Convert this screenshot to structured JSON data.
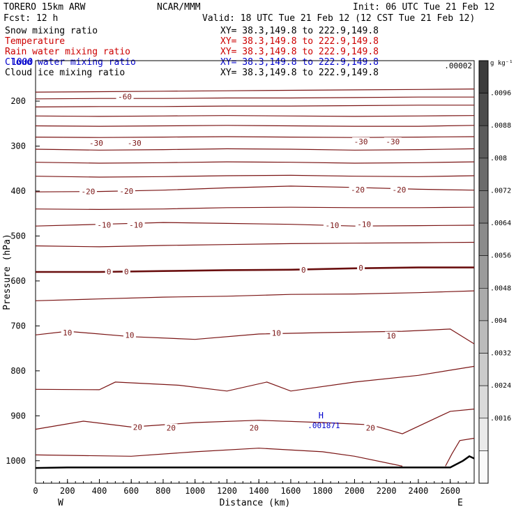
{
  "header": {
    "model": "TORERO  15km ARW",
    "center": "NCAR/MMM",
    "init": "Init: 06 UTC Tue 21 Feb 12",
    "fcst": "Fcst:   12 h",
    "valid": "Valid: 18 UTC Tue 21 Feb 12 (12 CST Tue 21 Feb 12)"
  },
  "fields": [
    {
      "name": "Snow mixing ratio",
      "xy": "XY=  38.3,149.8 to 222.9,149.8",
      "color": "#000000"
    },
    {
      "name": "Temperature",
      "xy": "XY=  38.3,149.8 to 222.9,149.8",
      "color": "#cc0000"
    },
    {
      "name": "Rain water mixing ratio",
      "xy": "XY=  38.3,149.8 to 222.9,149.8",
      "color": "#cc0000"
    },
    {
      "name": "Cloud water mixing ratio",
      "xy": "XY=  38.3,149.8 to 222.9,149.8",
      "color": "#0000cc"
    },
    {
      "name": "Cloud ice mixing ratio",
      "xy": "XY=  38.3,149.8 to 222.9,149.8",
      "color": "#000000"
    }
  ],
  "overlap_text": "1000",
  "chart_data": {
    "type": "contour",
    "xlabel": "Distance (km)",
    "ylabel": "Pressure (hPa)",
    "xlim": [
      0,
      2750
    ],
    "ylim": [
      1050,
      110
    ],
    "x_ticks": [
      0,
      200,
      400,
      600,
      800,
      1000,
      1200,
      1400,
      1600,
      1800,
      2000,
      2200,
      2400,
      2600
    ],
    "y_ticks": [
      200,
      300,
      400,
      500,
      600,
      700,
      800,
      900,
      1000
    ],
    "left_label": "W",
    "right_label": "E",
    "temperature_contours": [
      {
        "points": [
          [
            0,
            180
          ],
          [
            400,
            179
          ],
          [
            800,
            178
          ],
          [
            1200,
            177
          ],
          [
            1600,
            176
          ],
          [
            2000,
            175
          ],
          [
            2400,
            174
          ],
          [
            2750,
            173
          ]
        ]
      },
      {
        "points": [
          [
            0,
            195
          ],
          [
            400,
            194
          ],
          [
            800,
            194
          ],
          [
            1200,
            193
          ],
          [
            1600,
            193
          ],
          [
            2000,
            192
          ],
          [
            2400,
            191
          ],
          [
            2750,
            191
          ]
        ]
      },
      {
        "points": [
          [
            0,
            213
          ],
          [
            400,
            212
          ],
          [
            800,
            212
          ],
          [
            1200,
            211
          ],
          [
            1600,
            211
          ],
          [
            2000,
            210
          ],
          [
            2400,
            209
          ],
          [
            2750,
            209
          ]
        ]
      },
      {
        "points": [
          [
            0,
            233
          ],
          [
            400,
            234
          ],
          [
            800,
            233
          ],
          [
            1200,
            232
          ],
          [
            1600,
            233
          ],
          [
            2000,
            234
          ],
          [
            2400,
            233
          ],
          [
            2750,
            232
          ]
        ]
      },
      {
        "points": [
          [
            0,
            255
          ],
          [
            400,
            256
          ],
          [
            800,
            255
          ],
          [
            1200,
            254
          ],
          [
            1600,
            255
          ],
          [
            2000,
            256
          ],
          [
            2400,
            256
          ],
          [
            2750,
            254
          ]
        ]
      },
      {
        "points": [
          [
            0,
            280
          ],
          [
            400,
            281
          ],
          [
            800,
            280
          ],
          [
            1200,
            279
          ],
          [
            1600,
            280
          ],
          [
            2000,
            281
          ],
          [
            2400,
            280
          ],
          [
            2750,
            279
          ]
        ]
      },
      {
        "points": [
          [
            0,
            307
          ],
          [
            400,
            309
          ],
          [
            800,
            308
          ],
          [
            1200,
            306
          ],
          [
            1600,
            307
          ],
          [
            2000,
            309
          ],
          [
            2400,
            308
          ],
          [
            2750,
            306
          ]
        ]
      },
      {
        "points": [
          [
            0,
            336
          ],
          [
            400,
            338
          ],
          [
            800,
            337
          ],
          [
            1200,
            335
          ],
          [
            1600,
            336
          ],
          [
            2000,
            338
          ],
          [
            2400,
            337
          ],
          [
            2750,
            335
          ]
        ]
      },
      {
        "points": [
          [
            0,
            367
          ],
          [
            400,
            369
          ],
          [
            800,
            368
          ],
          [
            1200,
            366
          ],
          [
            1600,
            365
          ],
          [
            2000,
            367
          ],
          [
            2400,
            368
          ],
          [
            2750,
            366
          ]
        ]
      },
      {
        "points": [
          [
            0,
            402
          ],
          [
            400,
            401
          ],
          [
            800,
            398
          ],
          [
            1200,
            393
          ],
          [
            1600,
            389
          ],
          [
            2000,
            392
          ],
          [
            2400,
            396
          ],
          [
            2750,
            398
          ]
        ]
      },
      {
        "points": [
          [
            0,
            440
          ],
          [
            400,
            441
          ],
          [
            800,
            440
          ],
          [
            1200,
            437
          ],
          [
            1600,
            436
          ],
          [
            2000,
            437
          ],
          [
            2400,
            437
          ],
          [
            2750,
            436
          ]
        ]
      },
      {
        "points": [
          [
            0,
            478
          ],
          [
            400,
            474
          ],
          [
            800,
            470
          ],
          [
            1200,
            472
          ],
          [
            1600,
            474
          ],
          [
            2000,
            478
          ],
          [
            2400,
            477
          ],
          [
            2750,
            476
          ]
        ]
      },
      {
        "points": [
          [
            0,
            522
          ],
          [
            400,
            524
          ],
          [
            800,
            521
          ],
          [
            1200,
            519
          ],
          [
            1600,
            517
          ],
          [
            2000,
            516
          ],
          [
            2400,
            515
          ],
          [
            2750,
            514
          ]
        ]
      },
      {
        "points": [
          [
            0,
            580
          ],
          [
            400,
            580
          ],
          [
            800,
            578
          ],
          [
            1200,
            576
          ],
          [
            1600,
            575
          ],
          [
            2000,
            572
          ],
          [
            2400,
            570
          ],
          [
            2750,
            570
          ]
        ]
      },
      {
        "points": [
          [
            0,
            644
          ],
          [
            400,
            640
          ],
          [
            800,
            636
          ],
          [
            1200,
            634
          ],
          [
            1600,
            630
          ],
          [
            2000,
            629
          ],
          [
            2400,
            626
          ],
          [
            2750,
            622
          ]
        ]
      },
      {
        "points": [
          [
            0,
            720
          ],
          [
            200,
            712
          ],
          [
            600,
            724
          ],
          [
            1000,
            730
          ],
          [
            1400,
            718
          ],
          [
            1800,
            715
          ],
          [
            2300,
            712
          ],
          [
            2600,
            707
          ],
          [
            2750,
            740
          ]
        ]
      },
      {
        "points": [
          [
            0,
            841
          ],
          [
            400,
            842
          ],
          [
            500,
            825
          ],
          [
            900,
            832
          ],
          [
            1200,
            845
          ],
          [
            1450,
            825
          ],
          [
            1600,
            845
          ],
          [
            2000,
            825
          ],
          [
            2400,
            810
          ],
          [
            2750,
            790
          ]
        ]
      },
      {
        "points": [
          [
            0,
            930
          ],
          [
            300,
            912
          ],
          [
            600,
            925
          ],
          [
            1000,
            915
          ],
          [
            1400,
            910
          ],
          [
            1800,
            915
          ],
          [
            2100,
            920
          ],
          [
            2300,
            940
          ],
          [
            2600,
            890
          ],
          [
            2750,
            885
          ]
        ]
      },
      {
        "points": [
          [
            0,
            987
          ],
          [
            600,
            990
          ],
          [
            1000,
            980
          ],
          [
            1400,
            972
          ],
          [
            1800,
            980
          ],
          [
            2000,
            990
          ],
          [
            2300,
            1012
          ]
        ]
      },
      {
        "points": [
          [
            2570,
            1012
          ],
          [
            2610,
            985
          ],
          [
            2660,
            955
          ],
          [
            2750,
            950
          ]
        ]
      }
    ],
    "temperature_labels": [
      {
        "x": 560,
        "p": 190,
        "text": "-60"
      },
      {
        "x": 380,
        "p": 293,
        "text": "-30"
      },
      {
        "x": 620,
        "p": 293,
        "text": "-30"
      },
      {
        "x": 2040,
        "p": 290,
        "text": "-30"
      },
      {
        "x": 2240,
        "p": 290,
        "text": "-30"
      },
      {
        "x": 330,
        "p": 401,
        "text": "-20"
      },
      {
        "x": 570,
        "p": 400,
        "text": "-20"
      },
      {
        "x": 2020,
        "p": 397,
        "text": "-20"
      },
      {
        "x": 2280,
        "p": 397,
        "text": "-20"
      },
      {
        "x": 430,
        "p": 475,
        "text": "-10"
      },
      {
        "x": 630,
        "p": 475,
        "text": "-10"
      },
      {
        "x": 1860,
        "p": 476,
        "text": "-10"
      },
      {
        "x": 2060,
        "p": 474,
        "text": "-10"
      },
      {
        "x": 460,
        "p": 579,
        "text": "0"
      },
      {
        "x": 570,
        "p": 579,
        "text": "0"
      },
      {
        "x": 1680,
        "p": 575,
        "text": "0"
      },
      {
        "x": 2040,
        "p": 571,
        "text": "0"
      },
      {
        "x": 200,
        "p": 715,
        "text": "10"
      },
      {
        "x": 590,
        "p": 720,
        "text": "10"
      },
      {
        "x": 1510,
        "p": 716,
        "text": "10"
      },
      {
        "x": 2230,
        "p": 722,
        "text": "10"
      },
      {
        "x": 640,
        "p": 925,
        "text": "20"
      },
      {
        "x": 850,
        "p": 927,
        "text": "20"
      },
      {
        "x": 1370,
        "p": 927,
        "text": "20"
      },
      {
        "x": 2100,
        "p": 927,
        "text": "20"
      }
    ],
    "freezing_level": [
      [
        0,
        580
      ],
      [
        400,
        580
      ],
      [
        800,
        578
      ],
      [
        1200,
        576
      ],
      [
        1600,
        575
      ],
      [
        2000,
        572
      ],
      [
        2400,
        570
      ],
      [
        2750,
        570
      ]
    ],
    "terrain": [
      [
        0,
        1016
      ],
      [
        200,
        1015
      ],
      [
        600,
        1015
      ],
      [
        1000,
        1015
      ],
      [
        1400,
        1015
      ],
      [
        1800,
        1015
      ],
      [
        2200,
        1015
      ],
      [
        2600,
        1015
      ],
      [
        2680,
        1000
      ],
      [
        2720,
        990
      ],
      [
        2750,
        995
      ]
    ],
    "cloud_water_max": {
      "x": 1790,
      "p": 915,
      "marker": "H",
      "value": ".001871"
    },
    "cloud_top_label": ".00002",
    "colorbar": {
      "unit_label": "g kg⁻¹",
      "ticks": [
        ".0096",
        ".0088",
        ".008",
        ".0072",
        ".0064",
        ".0056",
        ".0048",
        ".004",
        ".0032",
        ".0024",
        ".0016"
      ]
    }
  }
}
